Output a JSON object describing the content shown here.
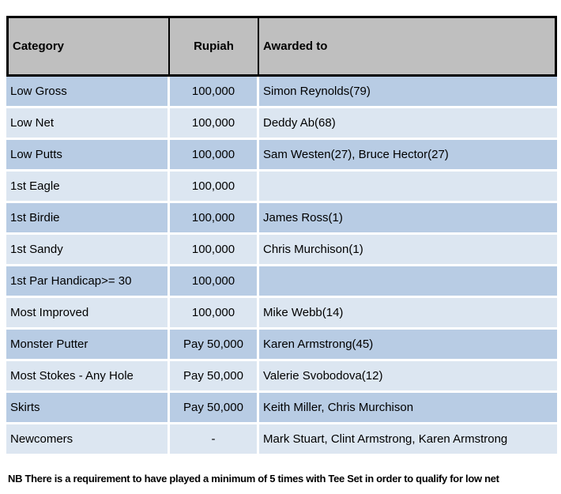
{
  "colors": {
    "header_bg": "#bfbfbf",
    "row_dark": "#b8cce4",
    "row_light": "#dce6f1",
    "table_border": "#000000",
    "cell_separator": "#ffffff",
    "text": "#000000"
  },
  "table": {
    "headers": [
      "Category",
      "Rupiah",
      "Awarded to"
    ],
    "rows": [
      {
        "category": "Low Gross",
        "rupiah": "100,000",
        "awarded": "Simon Reynolds(79)"
      },
      {
        "category": "Low Net",
        "rupiah": "100,000",
        "awarded": "Deddy Ab(68)"
      },
      {
        "category": "Low Putts",
        "rupiah": "100,000",
        "awarded": "Sam Westen(27), Bruce Hector(27)"
      },
      {
        "category": "1st Eagle",
        "rupiah": "100,000",
        "awarded": ""
      },
      {
        "category": "1st Birdie",
        "rupiah": "100,000",
        "awarded": "James Ross(1)"
      },
      {
        "category": "1st Sandy",
        "rupiah": "100,000",
        "awarded": "Chris Murchison(1)"
      },
      {
        "category": "1st Par Handicap>= 30",
        "rupiah": "100,000",
        "awarded": ""
      },
      {
        "category": "Most Improved",
        "rupiah": "100,000",
        "awarded": "Mike Webb(14)"
      },
      {
        "category": "Monster Putter",
        "rupiah": "Pay 50,000",
        "awarded": "Karen Armstrong(45)"
      },
      {
        "category": "Most Stokes - Any Hole",
        "rupiah": "Pay 50,000",
        "awarded": "Valerie Svobodova(12)"
      },
      {
        "category": "Skirts",
        "rupiah": "Pay 50,000",
        "awarded": "Keith Miller, Chris Murchison"
      },
      {
        "category": "Newcomers",
        "rupiah": "-",
        "awarded": "Mark Stuart, Clint Armstrong, Karen Armstrong"
      }
    ]
  },
  "note": "NB There is a requirement to have played a minimum of 5 times with Tee Set in order to qualify for low net"
}
